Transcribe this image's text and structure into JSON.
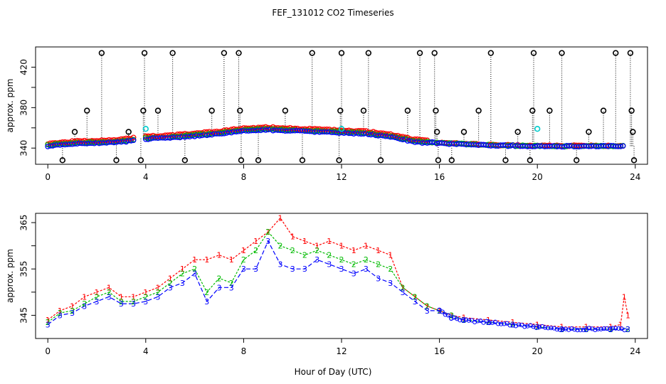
{
  "title": "FEF_131012  CO2 Timeseries",
  "xlabel": "Hour of Day (UTC)",
  "colors": {
    "series1": "#ff0000",
    "series2": "#00bb00",
    "series3": "#0000ff",
    "outlier": "#000000",
    "flagged": "#00cccc"
  },
  "chart_data": [
    {
      "type": "scatter",
      "title": "FEF_131012  CO2 Timeseries",
      "xlabel": "",
      "ylabel": "approx. ppm",
      "xlim": [
        -0.5,
        24.5
      ],
      "ylim": [
        324,
        440
      ],
      "xticks": [
        0,
        4,
        8,
        12,
        16,
        20,
        24
      ],
      "yticks": [
        340,
        360,
        380,
        400,
        420
      ],
      "ytick_labels": [
        "340",
        "",
        "380",
        "",
        "420"
      ],
      "baseline": [
        [
          0,
          343
        ],
        [
          1,
          345
        ],
        [
          2,
          346
        ],
        [
          3,
          347
        ],
        [
          4,
          350
        ],
        [
          5,
          351
        ],
        [
          6,
          353
        ],
        [
          7,
          355
        ],
        [
          8,
          358
        ],
        [
          9,
          359
        ],
        [
          10,
          358
        ],
        [
          11,
          357
        ],
        [
          12,
          356
        ],
        [
          13,
          355
        ],
        [
          14,
          352
        ],
        [
          15,
          347
        ],
        [
          16,
          345
        ],
        [
          18,
          343
        ],
        [
          20,
          342
        ],
        [
          22,
          342
        ],
        [
          23.6,
          342
        ]
      ],
      "gap": [
        3.6,
        4.0
      ],
      "outliers": [
        {
          "x": 0.6,
          "y": 328
        },
        {
          "x": 1.1,
          "y": 356
        },
        {
          "x": 1.6,
          "y": 377
        },
        {
          "x": 2.2,
          "y": 434
        },
        {
          "x": 2.8,
          "y": 328
        },
        {
          "x": 3.3,
          "y": 356
        },
        {
          "x": 3.8,
          "y": 328
        },
        {
          "x": 3.9,
          "y": 377
        },
        {
          "x": 3.95,
          "y": 434
        },
        {
          "x": 4.5,
          "y": 377
        },
        {
          "x": 5.1,
          "y": 434
        },
        {
          "x": 5.6,
          "y": 328
        },
        {
          "x": 6.7,
          "y": 377
        },
        {
          "x": 7.2,
          "y": 434
        },
        {
          "x": 7.8,
          "y": 434
        },
        {
          "x": 7.85,
          "y": 377
        },
        {
          "x": 7.9,
          "y": 328
        },
        {
          "x": 8.6,
          "y": 328
        },
        {
          "x": 9.7,
          "y": 377
        },
        {
          "x": 10.4,
          "y": 328
        },
        {
          "x": 10.8,
          "y": 434
        },
        {
          "x": 11.9,
          "y": 328
        },
        {
          "x": 11.95,
          "y": 377
        },
        {
          "x": 12.0,
          "y": 434
        },
        {
          "x": 12.9,
          "y": 377
        },
        {
          "x": 13.1,
          "y": 434
        },
        {
          "x": 13.6,
          "y": 328
        },
        {
          "x": 14.7,
          "y": 377
        },
        {
          "x": 15.2,
          "y": 434
        },
        {
          "x": 15.8,
          "y": 434
        },
        {
          "x": 15.85,
          "y": 377
        },
        {
          "x": 15.9,
          "y": 356
        },
        {
          "x": 15.95,
          "y": 328
        },
        {
          "x": 16.5,
          "y": 328
        },
        {
          "x": 17.0,
          "y": 356
        },
        {
          "x": 17.6,
          "y": 377
        },
        {
          "x": 18.1,
          "y": 434
        },
        {
          "x": 18.7,
          "y": 328
        },
        {
          "x": 19.2,
          "y": 356
        },
        {
          "x": 19.7,
          "y": 328
        },
        {
          "x": 19.8,
          "y": 377
        },
        {
          "x": 19.85,
          "y": 434
        },
        {
          "x": 20.5,
          "y": 377
        },
        {
          "x": 21.0,
          "y": 434
        },
        {
          "x": 21.6,
          "y": 328
        },
        {
          "x": 22.1,
          "y": 356
        },
        {
          "x": 22.7,
          "y": 377
        },
        {
          "x": 23.2,
          "y": 434
        },
        {
          "x": 23.8,
          "y": 434
        },
        {
          "x": 23.85,
          "y": 377
        },
        {
          "x": 23.9,
          "y": 356
        },
        {
          "x": 23.95,
          "y": 328
        }
      ],
      "flagged_points": [
        {
          "x": 4.0,
          "y": 359
        },
        {
          "x": 12.0,
          "y": 359
        },
        {
          "x": 20.0,
          "y": 359
        }
      ]
    },
    {
      "type": "line",
      "title": "",
      "xlabel": "Hour of Day (UTC)",
      "ylabel": "approx. ppm",
      "xlim": [
        -0.5,
        24.5
      ],
      "ylim": [
        340,
        367
      ],
      "xticks": [
        0,
        4,
        8,
        12,
        16,
        20,
        24
      ],
      "yticks": [
        345,
        350,
        355,
        360,
        365
      ],
      "ytick_labels": [
        "345",
        "",
        "355",
        "",
        "365"
      ],
      "series": [
        {
          "name": "1",
          "points": [
            [
              0,
              344
            ],
            [
              0.5,
              346
            ],
            [
              1,
              347
            ],
            [
              1.5,
              349
            ],
            [
              2,
              350
            ],
            [
              2.5,
              351
            ],
            [
              3,
              349
            ],
            [
              3.5,
              349
            ],
            [
              4,
              350
            ],
            [
              4.5,
              351
            ],
            [
              5,
              353
            ],
            [
              5.5,
              355
            ],
            [
              6,
              357
            ],
            [
              6.5,
              357
            ],
            [
              7,
              358
            ],
            [
              7.5,
              357
            ],
            [
              8,
              359
            ],
            [
              8.5,
              361
            ],
            [
              9,
              363
            ],
            [
              9.5,
              366
            ],
            [
              10,
              362
            ],
            [
              10.5,
              361
            ],
            [
              11,
              360
            ],
            [
              11.5,
              361
            ],
            [
              12,
              360
            ],
            [
              12.5,
              359
            ],
            [
              13,
              360
            ],
            [
              13.5,
              359
            ],
            [
              14,
              358
            ],
            [
              14.5,
              351
            ],
            [
              15,
              349
            ],
            [
              15.5,
              347
            ],
            [
              16,
              346
            ],
            [
              16.5,
              345
            ],
            [
              17,
              344.5
            ],
            [
              18,
              344
            ],
            [
              19,
              343.5
            ],
            [
              20,
              343
            ],
            [
              21,
              342.5
            ],
            [
              22,
              342.5
            ],
            [
              23,
              342.5
            ],
            [
              23.4,
              343
            ],
            [
              23.55,
              349
            ],
            [
              23.7,
              345
            ]
          ]
        },
        {
          "name": "2",
          "points": [
            [
              0,
              343.5
            ],
            [
              0.5,
              345.5
            ],
            [
              1,
              346
            ],
            [
              1.5,
              347.5
            ],
            [
              2,
              349
            ],
            [
              2.5,
              350
            ],
            [
              3,
              348
            ],
            [
              3.5,
              348
            ],
            [
              4,
              349
            ],
            [
              4.5,
              350
            ],
            [
              5,
              352
            ],
            [
              5.5,
              354
            ],
            [
              6,
              355
            ],
            [
              6.5,
              350
            ],
            [
              7,
              353
            ],
            [
              7.5,
              352
            ],
            [
              8,
              357
            ],
            [
              8.5,
              359
            ],
            [
              9,
              363
            ],
            [
              9.5,
              360
            ],
            [
              10,
              359
            ],
            [
              10.5,
              358
            ],
            [
              11,
              359
            ],
            [
              11.5,
              358
            ],
            [
              12,
              357
            ],
            [
              12.5,
              356
            ],
            [
              13,
              357
            ],
            [
              13.5,
              356
            ],
            [
              14,
              355
            ],
            [
              14.5,
              351
            ],
            [
              15,
              349
            ],
            [
              15.5,
              347
            ],
            [
              16,
              346
            ],
            [
              16.5,
              345
            ],
            [
              17,
              344
            ],
            [
              18,
              343.5
            ],
            [
              19,
              343
            ],
            [
              20,
              342.5
            ],
            [
              21,
              342
            ],
            [
              22,
              342
            ],
            [
              23,
              342
            ],
            [
              23.7,
              342
            ]
          ]
        },
        {
          "name": "3",
          "points": [
            [
              0,
              343
            ],
            [
              0.5,
              345
            ],
            [
              1,
              345.5
            ],
            [
              1.5,
              347
            ],
            [
              2,
              348
            ],
            [
              2.5,
              349
            ],
            [
              3,
              347.5
            ],
            [
              3.5,
              347.5
            ],
            [
              4,
              348
            ],
            [
              4.5,
              349
            ],
            [
              5,
              351
            ],
            [
              5.5,
              352
            ],
            [
              6,
              354
            ],
            [
              6.5,
              348
            ],
            [
              7,
              351
            ],
            [
              7.5,
              351
            ],
            [
              8,
              355
            ],
            [
              8.5,
              355
            ],
            [
              9,
              361
            ],
            [
              9.5,
              356
            ],
            [
              10,
              355
            ],
            [
              10.5,
              355
            ],
            [
              11,
              357
            ],
            [
              11.5,
              356
            ],
            [
              12,
              355
            ],
            [
              12.5,
              354
            ],
            [
              13,
              355
            ],
            [
              13.5,
              353
            ],
            [
              14,
              352
            ],
            [
              14.5,
              350
            ],
            [
              15,
              348
            ],
            [
              15.5,
              346
            ],
            [
              16,
              346
            ],
            [
              16.5,
              344.5
            ],
            [
              17,
              344
            ],
            [
              18,
              343.5
            ],
            [
              19,
              343
            ],
            [
              20,
              342.5
            ],
            [
              21,
              342
            ],
            [
              22,
              342
            ],
            [
              23,
              342
            ],
            [
              23.7,
              342
            ]
          ]
        }
      ]
    }
  ]
}
